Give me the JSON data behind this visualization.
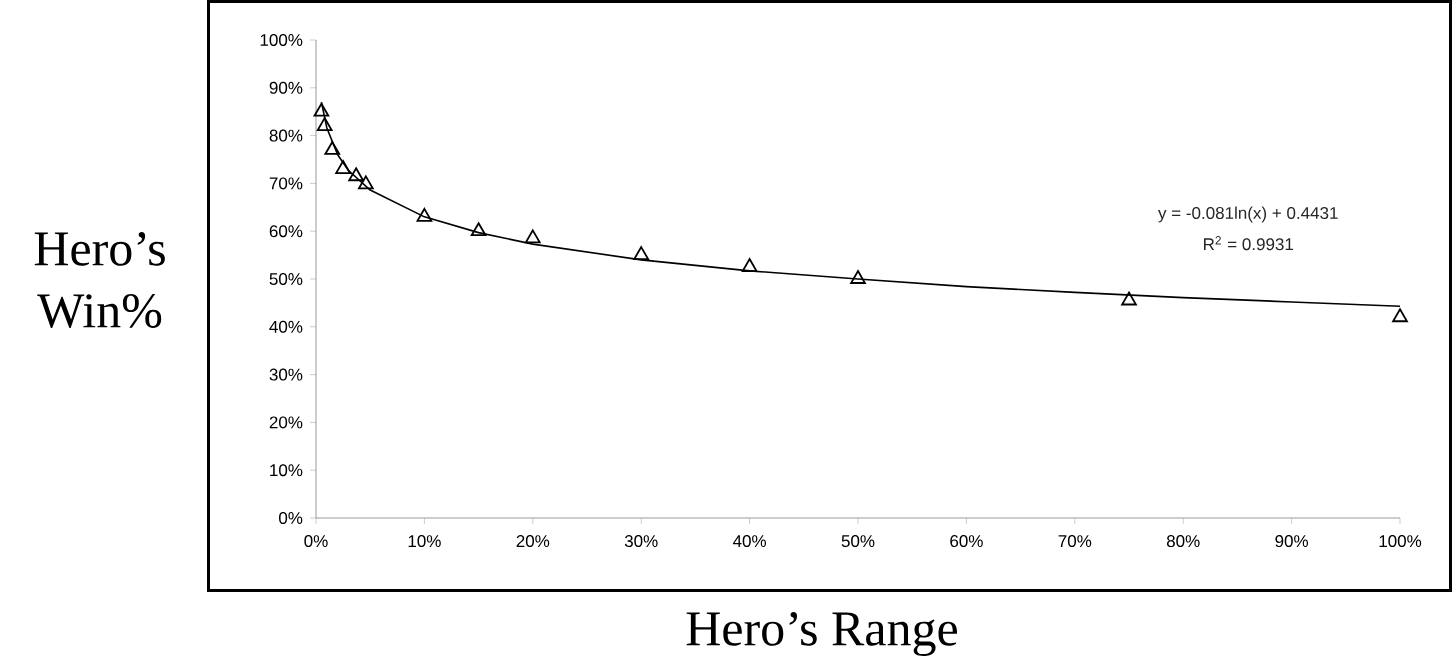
{
  "chart_data": {
    "type": "scatter",
    "xlabel": "Hero’s Range",
    "ylabel": "Hero’s Win%",
    "xlim": [
      0,
      100
    ],
    "ylim": [
      0,
      100
    ],
    "xticks": [
      {
        "value": 0,
        "label": "0%"
      },
      {
        "value": 10,
        "label": "10%"
      },
      {
        "value": 20,
        "label": "20%"
      },
      {
        "value": 30,
        "label": "30%"
      },
      {
        "value": 40,
        "label": "40%"
      },
      {
        "value": 50,
        "label": "50%"
      },
      {
        "value": 60,
        "label": "60%"
      },
      {
        "value": 70,
        "label": "70%"
      },
      {
        "value": 80,
        "label": "80%"
      },
      {
        "value": 90,
        "label": "90%"
      },
      {
        "value": 100,
        "label": "100%"
      }
    ],
    "yticks": [
      {
        "value": 0,
        "label": "0%"
      },
      {
        "value": 10,
        "label": "10%"
      },
      {
        "value": 20,
        "label": "20%"
      },
      {
        "value": 30,
        "label": "30%"
      },
      {
        "value": 40,
        "label": "40%"
      },
      {
        "value": 50,
        "label": "50%"
      },
      {
        "value": 60,
        "label": "60%"
      },
      {
        "value": 70,
        "label": "70%"
      },
      {
        "value": 80,
        "label": "80%"
      },
      {
        "value": 90,
        "label": "90%"
      },
      {
        "value": 100,
        "label": "100%"
      }
    ],
    "series": [
      {
        "color": "#000000",
        "marker": "triangle",
        "x": [
          0.5,
          0.8,
          1.5,
          2.5,
          3.7,
          4.6,
          10,
          15,
          20,
          30,
          40,
          50,
          75,
          100
        ],
        "values": [
          85,
          82,
          77,
          73,
          71.5,
          69.8,
          63,
          60,
          58.5,
          55,
          52.5,
          50,
          45.5,
          42
        ]
      },
      {
        "type": "line",
        "color": "#000000",
        "marker": "none",
        "line_style": "solid",
        "x": [
          0.5,
          1,
          2,
          3,
          5,
          10,
          15,
          20,
          30,
          40,
          50,
          60,
          70,
          80,
          90,
          100
        ],
        "values": [
          87,
          81.6,
          76,
          72.7,
          68.6,
          63,
          59.7,
          57.3,
          54,
          51.7,
          50,
          48.4,
          47.2,
          46.1,
          45.2,
          44.3
        ]
      }
    ],
    "annotations": [
      "y = -0.081ln(x) + 0.4431",
      "R$^{2}$ = 0.9931"
    ]
  }
}
